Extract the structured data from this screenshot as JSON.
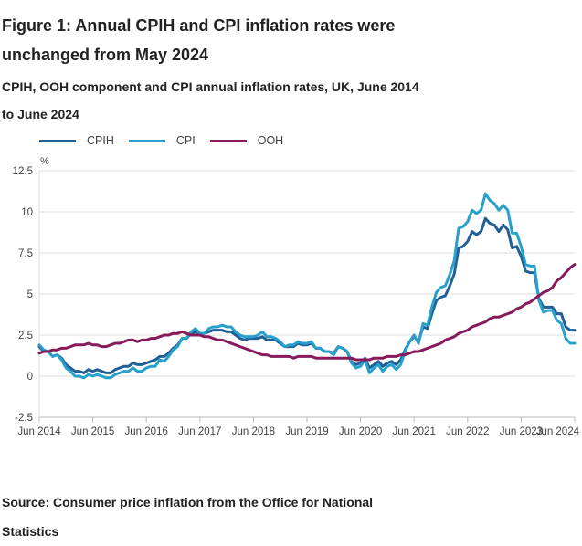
{
  "header": {
    "title": "Figure 1: Annual CPIH and CPI inflation rates were unchanged from May 2024",
    "subtitle": "CPIH, OOH component and CPI annual inflation rates, UK, June 2014 to June 2024"
  },
  "legend": {
    "items": [
      {
        "label": "CPIH",
        "color": "#206095"
      },
      {
        "label": "CPI",
        "color": "#27A0CC"
      },
      {
        "label": "OOH",
        "color": "#871A5B"
      }
    ]
  },
  "chart_data": {
    "type": "line",
    "title": "CPIH, OOH component and CPI annual inflation rates, UK, June 2014 to June 2024",
    "unit_label": "%",
    "frequency": "monthly",
    "x_start": "Jun 2014",
    "x_end": "Jun 2024",
    "x_tick_labels": [
      "Jun 2014",
      "Jun 2015",
      "Jun 2016",
      "Jun 2017",
      "Jun 2018",
      "Jun 2019",
      "Jun 2020",
      "Jun 2021",
      "Jun 2022",
      "Jun 2023",
      "Jun 2024"
    ],
    "y_tick_labels": [
      "12.5",
      "10",
      "7.5",
      "5",
      "2.5",
      "0",
      "-2.5"
    ],
    "y_ticks": [
      12.5,
      10,
      7.5,
      5,
      2.5,
      0,
      -2.5
    ],
    "ylim": [
      -2.5,
      12.5
    ],
    "grid": "horizontal",
    "legend_position": "top",
    "colors": {
      "gridline": "#dedede",
      "axis_line": "#b9b9b9",
      "axis_text": "#414042"
    },
    "series": [
      {
        "name": "CPIH",
        "color": "#206095",
        "values": [
          1.8,
          1.5,
          1.5,
          1.2,
          1.3,
          1.1,
          0.7,
          0.5,
          0.3,
          0.3,
          0.2,
          0.4,
          0.3,
          0.4,
          0.3,
          0.2,
          0.2,
          0.4,
          0.5,
          0.6,
          0.6,
          0.8,
          0.7,
          0.7,
          0.8,
          0.9,
          1.0,
          1.2,
          1.2,
          1.4,
          1.7,
          1.9,
          2.3,
          2.3,
          2.6,
          2.7,
          2.6,
          2.6,
          2.7,
          2.8,
          2.8,
          2.8,
          2.7,
          2.7,
          2.5,
          2.3,
          2.2,
          2.3,
          2.3,
          2.3,
          2.4,
          2.2,
          2.2,
          2.2,
          2.0,
          1.8,
          1.8,
          1.8,
          2.0,
          1.9,
          1.9,
          2.0,
          1.7,
          1.7,
          1.5,
          1.5,
          1.4,
          1.8,
          1.7,
          1.5,
          0.9,
          0.7,
          0.8,
          1.1,
          0.5,
          0.7,
          0.9,
          0.6,
          0.8,
          0.9,
          0.7,
          1.0,
          1.6,
          2.1,
          2.4,
          2.1,
          3.0,
          2.9,
          3.8,
          4.6,
          4.8,
          4.9,
          5.5,
          6.2,
          7.8,
          7.9,
          8.2,
          8.8,
          8.6,
          8.8,
          9.6,
          9.3,
          9.2,
          8.8,
          9.2,
          8.9,
          7.8,
          7.9,
          7.3,
          6.4,
          6.3,
          6.3,
          4.7,
          4.2,
          4.2,
          4.2,
          3.8,
          3.8,
          3.0,
          2.8,
          2.8
        ]
      },
      {
        "name": "CPI",
        "color": "#27A0CC",
        "values": [
          1.9,
          1.6,
          1.5,
          1.2,
          1.3,
          1.0,
          0.5,
          0.3,
          0.0,
          0.0,
          -0.1,
          0.1,
          0.0,
          0.1,
          0.0,
          -0.1,
          -0.1,
          0.1,
          0.2,
          0.3,
          0.3,
          0.5,
          0.3,
          0.3,
          0.5,
          0.6,
          0.6,
          1.0,
          0.9,
          1.2,
          1.6,
          1.8,
          2.3,
          2.3,
          2.7,
          2.9,
          2.6,
          2.6,
          2.9,
          3.0,
          3.0,
          3.1,
          3.0,
          3.0,
          2.7,
          2.5,
          2.4,
          2.4,
          2.4,
          2.5,
          2.7,
          2.4,
          2.4,
          2.3,
          2.1,
          1.8,
          1.9,
          1.9,
          2.1,
          2.0,
          2.0,
          2.1,
          1.7,
          1.7,
          1.5,
          1.5,
          1.3,
          1.8,
          1.7,
          1.5,
          0.8,
          0.5,
          0.6,
          1.0,
          0.2,
          0.5,
          0.7,
          0.3,
          0.6,
          0.7,
          0.4,
          0.7,
          1.5,
          2.1,
          2.5,
          2.0,
          3.2,
          3.1,
          4.2,
          5.1,
          5.4,
          5.5,
          6.2,
          7.0,
          9.0,
          9.1,
          9.4,
          10.1,
          9.9,
          10.1,
          11.1,
          10.7,
          10.5,
          10.1,
          10.4,
          10.1,
          8.7,
          8.7,
          7.9,
          6.8,
          6.7,
          6.7,
          4.6,
          3.9,
          4.0,
          4.0,
          3.4,
          3.2,
          2.3,
          2.0,
          2.0
        ]
      },
      {
        "name": "OOH",
        "color": "#871A5B",
        "values": [
          1.4,
          1.5,
          1.5,
          1.6,
          1.6,
          1.7,
          1.7,
          1.8,
          1.9,
          1.9,
          1.9,
          2.0,
          1.9,
          1.9,
          1.8,
          1.8,
          1.9,
          2.0,
          2.0,
          2.1,
          2.2,
          2.2,
          2.1,
          2.2,
          2.2,
          2.3,
          2.3,
          2.4,
          2.5,
          2.5,
          2.6,
          2.6,
          2.7,
          2.6,
          2.5,
          2.5,
          2.5,
          2.4,
          2.4,
          2.3,
          2.2,
          2.2,
          2.1,
          2.0,
          1.9,
          1.8,
          1.7,
          1.6,
          1.5,
          1.4,
          1.3,
          1.3,
          1.2,
          1.2,
          1.2,
          1.2,
          1.2,
          1.1,
          1.2,
          1.2,
          1.2,
          1.2,
          1.1,
          1.1,
          1.1,
          1.1,
          1.1,
          1.1,
          1.1,
          1.1,
          1.1,
          1.0,
          1.0,
          1.0,
          1.0,
          1.1,
          1.1,
          1.1,
          1.2,
          1.2,
          1.2,
          1.3,
          1.3,
          1.4,
          1.5,
          1.5,
          1.6,
          1.7,
          1.8,
          1.9,
          2.0,
          2.2,
          2.3,
          2.4,
          2.6,
          2.7,
          2.8,
          3.0,
          3.1,
          3.2,
          3.3,
          3.5,
          3.6,
          3.6,
          3.7,
          3.8,
          3.9,
          4.1,
          4.2,
          4.4,
          4.5,
          4.7,
          4.9,
          5.1,
          5.2,
          5.4,
          5.8,
          6.0,
          6.3,
          6.6,
          6.8
        ]
      }
    ]
  },
  "source": {
    "text": "Source: Consumer price inflation from the Office for National Statistics"
  }
}
